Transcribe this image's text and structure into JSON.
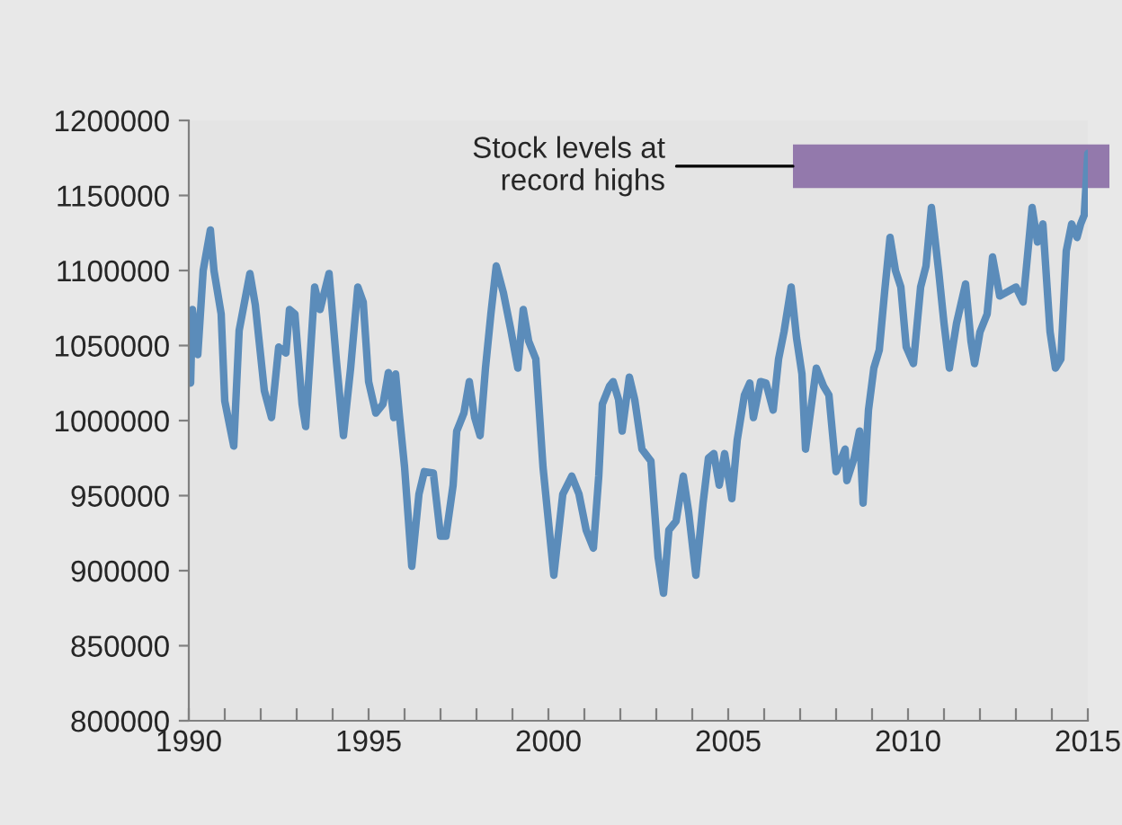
{
  "chart_data": {
    "type": "line",
    "x": [
      1990.05,
      1990.1,
      1990.25,
      1990.4,
      1990.6,
      1990.7,
      1990.9,
      1991.0,
      1991.25,
      1991.4,
      1991.7,
      1991.85,
      1992.1,
      1992.3,
      1992.5,
      1992.7,
      1992.8,
      1992.95,
      1993.15,
      1993.25,
      1993.5,
      1993.65,
      1993.9,
      1994.1,
      1994.3,
      1994.5,
      1994.7,
      1994.85,
      1995.0,
      1995.2,
      1995.4,
      1995.55,
      1995.7,
      1995.75,
      1995.85,
      1996.0,
      1996.2,
      1996.4,
      1996.55,
      1996.8,
      1997.0,
      1997.15,
      1997.35,
      1997.45,
      1997.65,
      1997.8,
      1997.95,
      1998.1,
      1998.25,
      1998.4,
      1998.55,
      1998.75,
      1998.95,
      1999.15,
      1999.3,
      1999.45,
      1999.65,
      1999.85,
      2000.15,
      2000.4,
      2000.65,
      2000.85,
      2001.05,
      2001.25,
      2001.4,
      2001.5,
      2001.7,
      2001.8,
      2001.95,
      2002.05,
      2002.25,
      2002.4,
      2002.6,
      2002.85,
      2003.05,
      2003.2,
      2003.35,
      2003.55,
      2003.75,
      2003.9,
      2004.1,
      2004.3,
      2004.45,
      2004.6,
      2004.75,
      2004.9,
      2005.1,
      2005.25,
      2005.45,
      2005.6,
      2005.7,
      2005.9,
      2006.05,
      2006.25,
      2006.4,
      2006.55,
      2006.75,
      2006.9,
      2007.05,
      2007.15,
      2007.45,
      2007.65,
      2007.8,
      2008.0,
      2008.25,
      2008.3,
      2008.5,
      2008.65,
      2008.75,
      2008.9,
      2009.05,
      2009.2,
      2009.35,
      2009.5,
      2009.65,
      2009.8,
      2009.95,
      2010.15,
      2010.35,
      2010.5,
      2010.65,
      2010.85,
      2011.0,
      2011.15,
      2011.35,
      2011.6,
      2011.75,
      2011.85,
      2012.0,
      2012.2,
      2012.35,
      2012.55,
      2013.0,
      2013.2,
      2013.45,
      2013.6,
      2013.75,
      2013.95,
      2014.1,
      2014.25,
      2014.4,
      2014.55,
      2014.7,
      2014.8,
      2014.9,
      2015.0
    ],
    "series": [
      {
        "color": "#5b8cba",
        "values": [
          1025000,
          1074000,
          1044000,
          1100000,
          1127000,
          1100000,
          1071000,
          1013000,
          983000,
          1060000,
          1098000,
          1077000,
          1020000,
          1002000,
          1049000,
          1045000,
          1074000,
          1071000,
          1011000,
          996000,
          1089000,
          1074000,
          1098000,
          1041000,
          990000,
          1035000,
          1089000,
          1079000,
          1026000,
          1005000,
          1011000,
          1032000,
          1002000,
          1031000,
          1005000,
          969000,
          903000,
          951000,
          966000,
          965000,
          923000,
          923000,
          957000,
          993000,
          1005000,
          1026000,
          1002000,
          990000,
          1035000,
          1071000,
          1103000,
          1085000,
          1061000,
          1035000,
          1074000,
          1053000,
          1041000,
          969000,
          897000,
          951000,
          963000,
          951000,
          927000,
          915000,
          963000,
          1011000,
          1023000,
          1026000,
          1014000,
          993000,
          1029000,
          1014000,
          981000,
          973000,
          909000,
          885000,
          927000,
          933000,
          963000,
          939000,
          897000,
          945000,
          975000,
          978000,
          957000,
          978000,
          948000,
          987000,
          1017000,
          1025000,
          1002000,
          1026000,
          1025000,
          1007000,
          1041000,
          1059000,
          1089000,
          1055000,
          1031000,
          981000,
          1035000,
          1023000,
          1017000,
          966000,
          981000,
          960000,
          975000,
          993000,
          945000,
          1007000,
          1035000,
          1047000,
          1086000,
          1122000,
          1100000,
          1089000,
          1049000,
          1038000,
          1089000,
          1103000,
          1142000,
          1100000,
          1065000,
          1035000,
          1065000,
          1091000,
          1053000,
          1038000,
          1059000,
          1071000,
          1109000,
          1083000,
          1089000,
          1079000,
          1142000,
          1119000,
          1131000,
          1059000,
          1035000,
          1041000,
          1113000,
          1131000,
          1122000,
          1131000,
          1137000,
          1178000
        ]
      }
    ],
    "xlim": [
      1990,
      2015
    ],
    "xticks": [
      1990,
      {
        "value": 1991,
        "label": null
      },
      {
        "value": 1992,
        "label": null
      },
      {
        "value": 1993,
        "label": null
      },
      {
        "value": 1994,
        "label": null
      },
      1995,
      {
        "value": 1996,
        "label": null
      },
      {
        "value": 1997,
        "label": null
      },
      {
        "value": 1998,
        "label": null
      },
      {
        "value": 1999,
        "label": null
      },
      2000,
      {
        "value": 2001,
        "label": null
      },
      {
        "value": 2002,
        "label": null
      },
      {
        "value": 2003,
        "label": null
      },
      {
        "value": 2004,
        "label": null
      },
      2005,
      {
        "value": 2006,
        "label": null
      },
      {
        "value": 2007,
        "label": null
      },
      {
        "value": 2008,
        "label": null
      },
      {
        "value": 2009,
        "label": null
      },
      2010,
      {
        "value": 2011,
        "label": null
      },
      {
        "value": 2012,
        "label": null
      },
      {
        "value": 2013,
        "label": null
      },
      {
        "value": 2014,
        "label": null
      },
      2015
    ],
    "ylim": [
      800000,
      1200000
    ],
    "yticks": [
      800000,
      850000,
      900000,
      950000,
      1000000,
      1050000,
      1100000,
      1150000,
      1200000
    ],
    "bands": [
      {
        "axis": "y",
        "from": 1155000,
        "to": 1184000,
        "label": "Stock levels at\nrecord highs",
        "color": "#8e73a9"
      }
    ],
    "grid": false,
    "legend": false,
    "line_style": "solid",
    "marker": "none"
  }
}
